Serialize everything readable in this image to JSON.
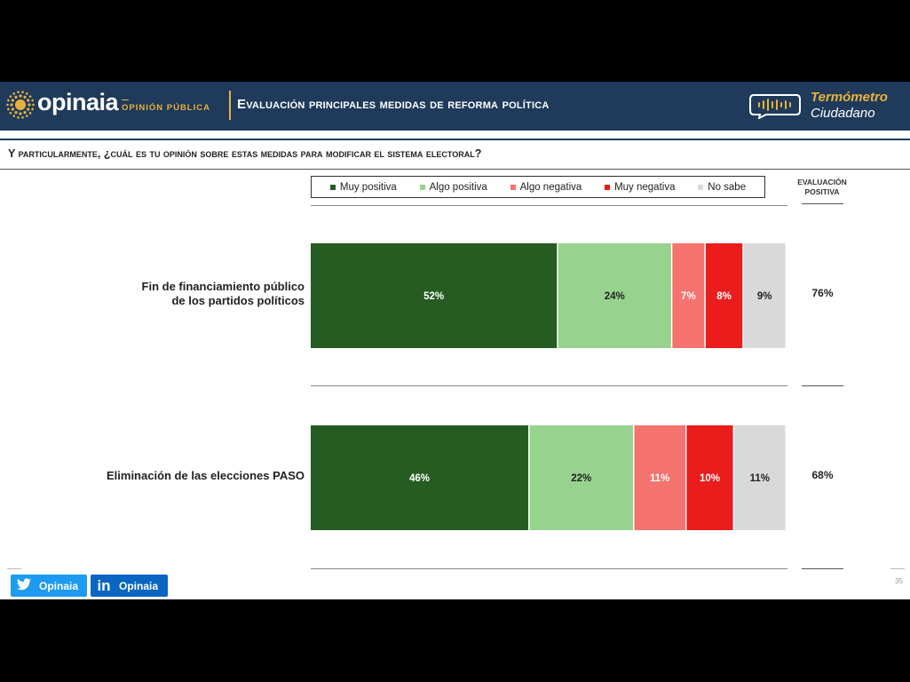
{
  "header": {
    "brand": "opinaia",
    "brand_sub": "OPINIÓN PÚBLICA",
    "title": "Evaluación principales medidas de reforma política",
    "badge_line1": "Termómetro",
    "badge_line2": "Ciudadano"
  },
  "question": "Y particularmente, ¿cuál es tu opinión sobre estas medidas para modificar el sistema electoral?",
  "eval_header": [
    "EVALUACIÓN",
    "POSITIVA"
  ],
  "colors": {
    "header_bg": "#1f3a5a",
    "accent": "#e8b23a",
    "muy_positiva": "#265c22",
    "algo_positiva": "#97d38e",
    "algo_negativa": "#f4736e",
    "muy_negativa": "#ea1c1c",
    "no_sabe": "#d9d9d9"
  },
  "chart_data": {
    "type": "bar",
    "orientation": "horizontal-stacked-100",
    "categories": [
      "Fin de financiamiento público de los partidos políticos",
      "Eliminación de las elecciones PASO"
    ],
    "category_lines": [
      [
        "Fin de financiamiento público",
        "de los partidos políticos"
      ],
      [
        "Eliminación de las elecciones PASO"
      ]
    ],
    "series": [
      {
        "name": "Muy positiva",
        "color": "#265c22",
        "values": [
          52,
          46
        ],
        "labels": [
          "52%",
          "46%"
        ]
      },
      {
        "name": "Algo positiva",
        "color": "#97d38e",
        "values": [
          24,
          22
        ],
        "labels": [
          "24%",
          "22%"
        ]
      },
      {
        "name": "Algo negativa",
        "color": "#f4736e",
        "values": [
          7,
          11
        ],
        "labels": [
          "7%",
          "11%"
        ]
      },
      {
        "name": "Muy negativa",
        "color": "#ea1c1c",
        "values": [
          8,
          10
        ],
        "labels": [
          "8%",
          "10%"
        ]
      },
      {
        "name": "No sabe",
        "color": "#d9d9d9",
        "values": [
          9,
          11
        ],
        "labels": [
          "9%",
          "11%"
        ]
      }
    ],
    "evaluacion_positiva": [
      "76%",
      "68%"
    ],
    "legend_position": "top",
    "grid": false
  },
  "footer": {
    "twitter_label": "Opinaia",
    "linkedin_label": "Opinaia",
    "page_number": "35"
  }
}
